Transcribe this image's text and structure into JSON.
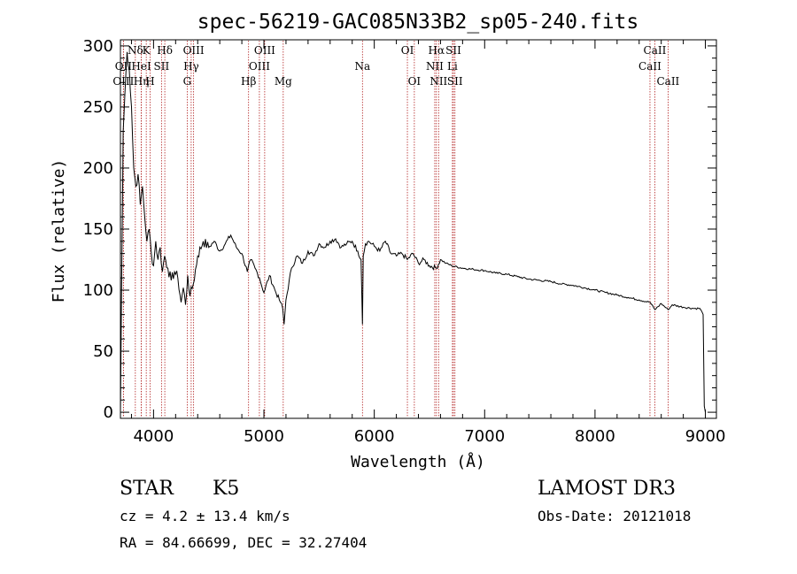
{
  "chart_data": {
    "type": "line",
    "title": "spec-56219-GAC085N33B2_sp05-240.fits",
    "xlabel": "Wavelength (Å)",
    "ylabel": "Flux (relative)",
    "xlim": [
      3700,
      9100
    ],
    "ylim": [
      -5,
      305
    ],
    "xticks": [
      4000,
      5000,
      6000,
      7000,
      8000,
      9000
    ],
    "yticks": [
      0,
      50,
      100,
      150,
      200,
      250,
      300
    ],
    "xtick_labels": [
      "4000",
      "5000",
      "6000",
      "7000",
      "8000",
      "9000"
    ],
    "ytick_labels": [
      "0",
      "50",
      "100",
      "150",
      "200",
      "250",
      "300"
    ],
    "series": [
      {
        "name": "flux",
        "x": [
          3700,
          3710,
          3725,
          3740,
          3760,
          3780,
          3800,
          3820,
          3840,
          3860,
          3880,
          3900,
          3920,
          3940,
          3960,
          3980,
          4000,
          4020,
          4040,
          4060,
          4080,
          4100,
          4130,
          4160,
          4190,
          4220,
          4250,
          4270,
          4290,
          4310,
          4330,
          4360,
          4400,
          4450,
          4500,
          4550,
          4600,
          4650,
          4700,
          4750,
          4800,
          4850,
          4880,
          4920,
          4960,
          5000,
          5050,
          5100,
          5150,
          5170,
          5183,
          5200,
          5250,
          5300,
          5350,
          5400,
          5450,
          5500,
          5550,
          5600,
          5650,
          5700,
          5750,
          5800,
          5850,
          5880,
          5893,
          5900,
          5920,
          5950,
          6000,
          6050,
          6100,
          6150,
          6200,
          6250,
          6300,
          6350,
          6400,
          6450,
          6500,
          6563,
          6600,
          6650,
          6700,
          6800,
          6900,
          7000,
          7100,
          7200,
          7300,
          7400,
          7500,
          7600,
          7700,
          7800,
          7900,
          8000,
          8100,
          8200,
          8300,
          8400,
          8500,
          8542,
          8600,
          8662,
          8700,
          8800,
          8900,
          8950,
          8980,
          8990,
          9000
        ],
        "y": [
          0,
          95,
          230,
          260,
          295,
          280,
          250,
          200,
          185,
          195,
          170,
          185,
          160,
          140,
          150,
          130,
          120,
          140,
          125,
          135,
          115,
          128,
          118,
          108,
          115,
          110,
          90,
          102,
          88,
          112,
          95,
          105,
          128,
          140,
          135,
          140,
          132,
          138,
          145,
          135,
          130,
          115,
          125,
          118,
          110,
          98,
          112,
          100,
          90,
          85,
          72,
          92,
          118,
          128,
          122,
          132,
          128,
          138,
          135,
          140,
          142,
          135,
          138,
          140,
          132,
          125,
          72,
          128,
          138,
          140,
          136,
          132,
          140,
          130,
          128,
          130,
          125,
          130,
          122,
          125,
          120,
          118,
          125,
          122,
          120,
          118,
          117,
          116,
          114,
          113,
          111,
          109,
          108,
          107,
          105,
          104,
          102,
          100,
          98,
          96,
          94,
          92,
          90,
          84,
          89,
          84,
          88,
          86,
          85,
          85,
          80,
          5,
          0
        ]
      }
    ],
    "lines": [
      {
        "name": "Nδ",
        "x": 3835,
        "row": 1
      },
      {
        "name": "OII",
        "x": 3727,
        "row": 2
      },
      {
        "name": "OIII",
        "x": 3727,
        "row": 3
      },
      {
        "name": "Hη",
        "x": 3889,
        "row": 3
      },
      {
        "name": "K",
        "x": 3934,
        "row": 1
      },
      {
        "name": "HeI",
        "x": 3889,
        "row": 2
      },
      {
        "name": "H",
        "x": 3969,
        "row": 3
      },
      {
        "name": "SII",
        "x": 4072,
        "row": 2
      },
      {
        "name": "Hδ",
        "x": 4102,
        "row": 1
      },
      {
        "name": "OIII",
        "x": 4363,
        "row": 1
      },
      {
        "name": "Hγ",
        "x": 4341,
        "row": 2
      },
      {
        "name": "G",
        "x": 4305,
        "row": 3
      },
      {
        "name": "Hβ",
        "x": 4861,
        "row": 3
      },
      {
        "name": "OIII",
        "x": 5007,
        "row": 1
      },
      {
        "name": "OIII",
        "x": 4959,
        "row": 2
      },
      {
        "name": "Mg",
        "x": 5175,
        "row": 3
      },
      {
        "name": "Na",
        "x": 5893,
        "row": 2
      },
      {
        "name": "OI",
        "x": 6300,
        "row": 1
      },
      {
        "name": "OI",
        "x": 6363,
        "row": 3
      },
      {
        "name": "Hα",
        "x": 6563,
        "row": 1
      },
      {
        "name": "NII",
        "x": 6548,
        "row": 2
      },
      {
        "name": "NII",
        "x": 6583,
        "row": 3
      },
      {
        "name": "SII",
        "x": 6717,
        "row": 1
      },
      {
        "name": "Li",
        "x": 6708,
        "row": 2
      },
      {
        "name": "SII",
        "x": 6731,
        "row": 3
      },
      {
        "name": "CaII",
        "x": 8542,
        "row": 1
      },
      {
        "name": "CaII",
        "x": 8498,
        "row": 2
      },
      {
        "name": "CaII",
        "x": 8662,
        "row": 3
      }
    ]
  },
  "info": {
    "class_label": "STAR",
    "subclass_label": "K5",
    "cz_text": "cz = 4.2 ± 13.4 km/s",
    "coords_text": "RA =  84.66699, DEC =  32.27404",
    "survey_label": "LAMOST DR3",
    "obs_date_text": "Obs-Date: 20121018"
  }
}
